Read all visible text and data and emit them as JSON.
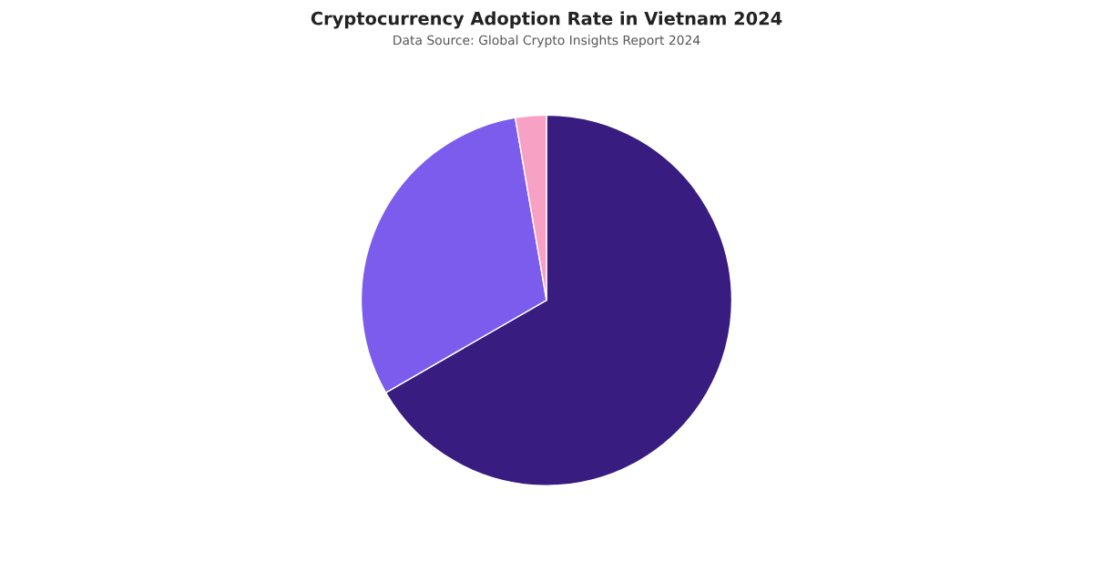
{
  "chart_data": {
    "type": "pie",
    "title": "Cryptocurrency Adoption Rate in Vietnam 2024",
    "subtitle": "Data Source: Global Crypto Insights Report 2024",
    "categories": [
      null,
      null,
      null
    ],
    "values": [
      66.7,
      30.6,
      2.7
    ],
    "colors": [
      "#381c80",
      "#7b5ced",
      "#f7a1c4"
    ],
    "legend": false
  }
}
